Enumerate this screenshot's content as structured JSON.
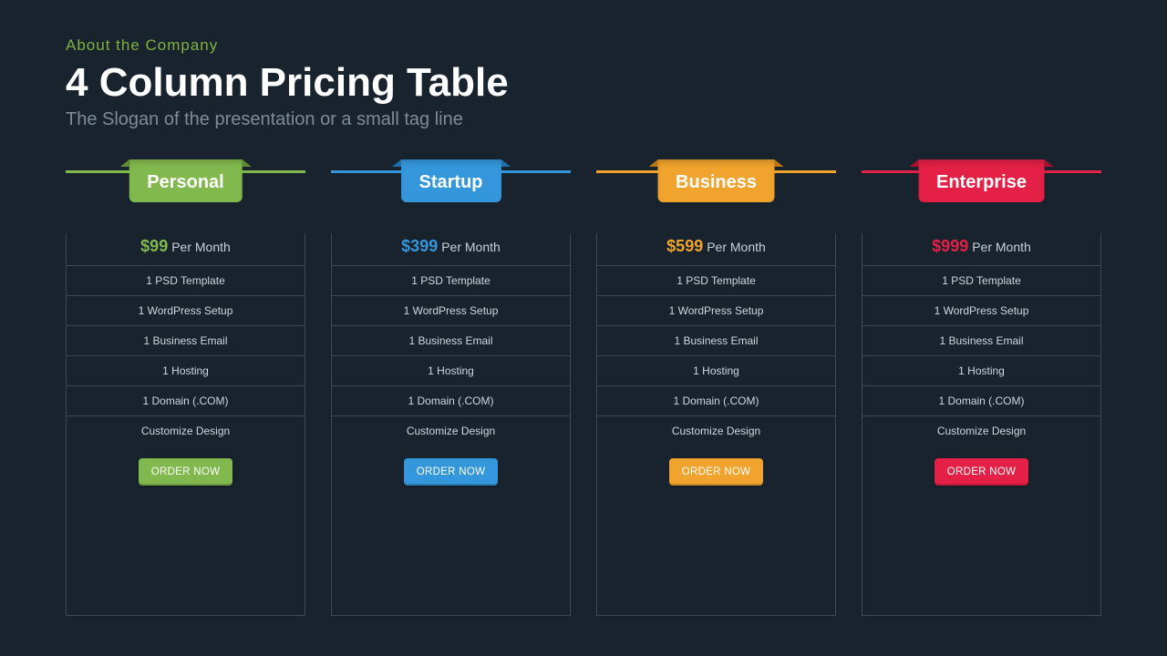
{
  "page": {
    "background_color": "#18232e",
    "border_color": "#3b4754",
    "muted_text_color": "#7d8b99",
    "feature_text_color": "#cfd6dd"
  },
  "header": {
    "eyebrow": "About the Company",
    "eyebrow_color": "#7fb23f",
    "title": "4 Column Pricing Table",
    "tagline": "The Slogan of the presentation or a small tag line"
  },
  "price_period_label": "Per Month",
  "order_button_label": "ORDER NOW",
  "features": [
    "1 PSD Template",
    "1 WordPress Setup",
    "1 Business Email",
    "1 Hosting",
    "1 Domain (.COM)",
    "Customize Design"
  ],
  "plans": [
    {
      "id": "personal",
      "name": "Personal",
      "price": "$99",
      "accent": "#82b94e",
      "accent_dark": "#5e8a33"
    },
    {
      "id": "startup",
      "name": "Startup",
      "price": "$399",
      "accent": "#3597db",
      "accent_dark": "#1f6fab"
    },
    {
      "id": "business",
      "name": "Business",
      "price": "$599",
      "accent": "#f0a32d",
      "accent_dark": "#b97714"
    },
    {
      "id": "enterprise",
      "name": "Enterprise",
      "price": "$999",
      "accent": "#e42046",
      "accent_dark": "#a5132f"
    }
  ]
}
